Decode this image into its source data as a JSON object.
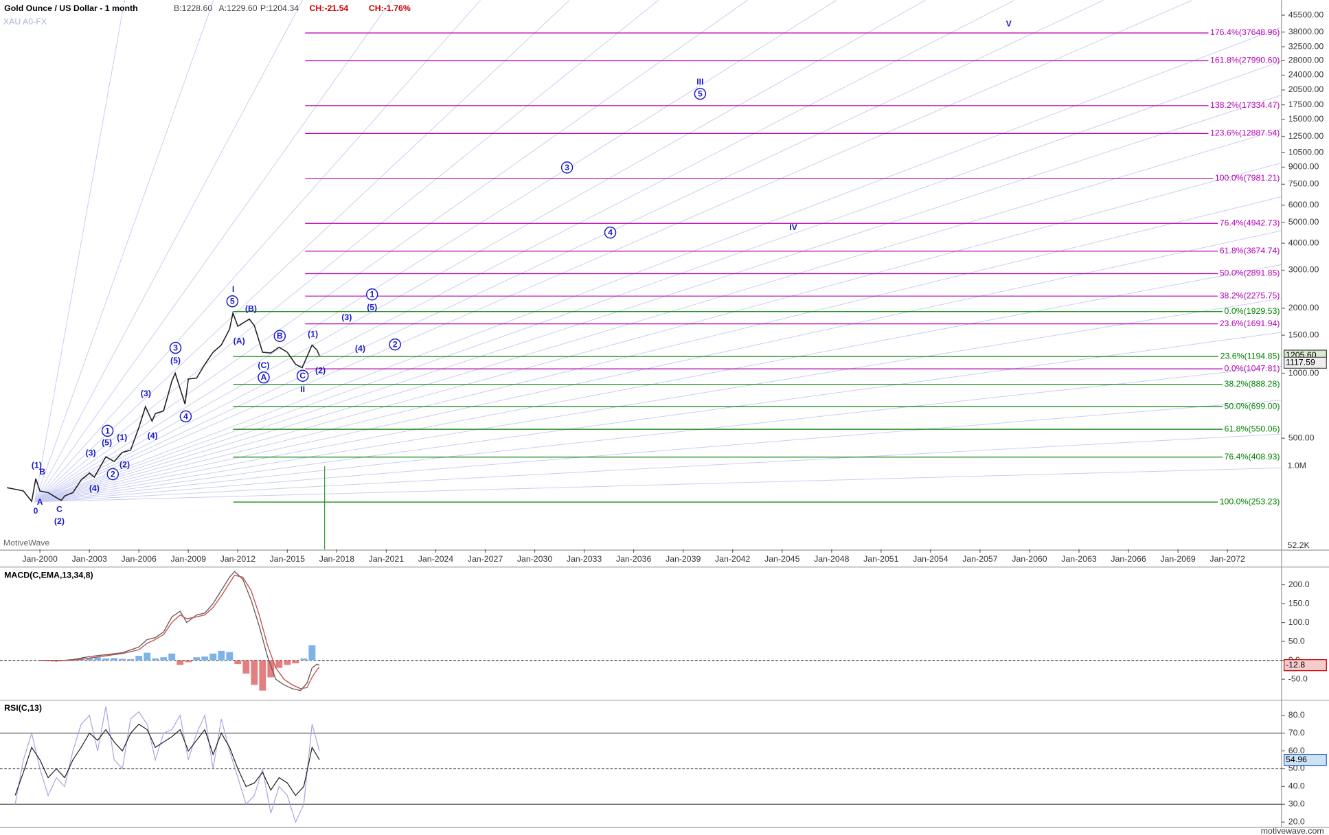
{
  "header": {
    "title": "Gold Ounce / US Dollar - 1 month",
    "bid": "B:1228.60",
    "ask": "A:1229.60",
    "price": "P:1204.34",
    "change": "CH:-21.54",
    "change_pct": "CH:-1.76%",
    "symbol": "XAU A0-FX",
    "watermark": "MotiveWave",
    "footer": "motivewave.com"
  },
  "chart_data": [
    {
      "type": "line",
      "log_scale": true,
      "color": "#222222",
      "x": [
        1998,
        1998.5,
        1999,
        1999.5,
        1999.75,
        2000,
        2000.5,
        2001,
        2001.3,
        2001.5,
        2002,
        2002.5,
        2003,
        2003.3,
        2004,
        2004.5,
        2005,
        2005.5,
        2006,
        2006.4,
        2006.8,
        2007,
        2007.5,
        2008,
        2008.2,
        2008.8,
        2009,
        2009.5,
        2010,
        2010.5,
        2011,
        2011.5,
        2011.7,
        2012,
        2012.7,
        2013,
        2013.5,
        2014,
        2014.5,
        2015,
        2015.5,
        2015.9,
        2016.5,
        2016.8,
        2016.95
      ],
      "values": [
        295,
        290,
        285,
        255,
        325,
        285,
        280,
        265,
        258,
        270,
        280,
        320,
        345,
        330,
        410,
        390,
        430,
        440,
        560,
        700,
        600,
        650,
        670,
        920,
        1000,
        720,
        940,
        950,
        1100,
        1250,
        1350,
        1600,
        1900,
        1650,
        1780,
        1660,
        1250,
        1240,
        1320,
        1250,
        1100,
        1060,
        1350,
        1280,
        1205
      ],
      "xlim": [
        1997.58,
        2075.28
      ],
      "xticks": [
        {
          "value": 2000,
          "label": "Jan-2000"
        },
        {
          "value": 2003,
          "label": "Jan-2003"
        },
        {
          "value": 2006,
          "label": "Jan-2006"
        },
        {
          "value": 2009,
          "label": "Jan-2009"
        },
        {
          "value": 2012,
          "label": "Jan-2012"
        },
        {
          "value": 2015,
          "label": "Jan-2015"
        },
        {
          "value": 2018,
          "label": "Jan-2018"
        },
        {
          "value": 2021,
          "label": "Jan-2021"
        },
        {
          "value": 2024,
          "label": "Jan-2024"
        },
        {
          "value": 2027,
          "label": "Jan-2027"
        },
        {
          "value": 2030,
          "label": "Jan-2030"
        },
        {
          "value": 2033,
          "label": "Jan-2033"
        },
        {
          "value": 2036,
          "label": "Jan-2036"
        },
        {
          "value": 2039,
          "label": "Jan-2039"
        },
        {
          "value": 2042,
          "label": "Jan-2042"
        },
        {
          "value": 2045,
          "label": "Jan-2045"
        },
        {
          "value": 2048,
          "label": "Jan-2048"
        },
        {
          "value": 2051,
          "label": "Jan-2051"
        },
        {
          "value": 2054,
          "label": "Jan-2054"
        },
        {
          "value": 2057,
          "label": "Jan-2057"
        },
        {
          "value": 2060,
          "label": "Jan-2060"
        },
        {
          "value": 2063,
          "label": "Jan-2063"
        },
        {
          "value": 2066,
          "label": "Jan-2066"
        },
        {
          "value": 2069,
          "label": "Jan-2069"
        },
        {
          "value": 2072,
          "label": "Jan-2072"
        }
      ],
      "ylim": [
        153,
        53400
      ],
      "yticks": [
        {
          "value": 45500,
          "label": "45500.00"
        },
        {
          "value": 38000,
          "label": "38000.00"
        },
        {
          "value": 32500,
          "label": "32500.00"
        },
        {
          "value": 28000,
          "label": "28000.00"
        },
        {
          "value": 24000,
          "label": "24000.00"
        },
        {
          "value": 20500,
          "label": "20500.00"
        },
        {
          "value": 17500,
          "label": "17500.00"
        },
        {
          "value": 15000,
          "label": "15000.00"
        },
        {
          "value": 12500,
          "label": "12500.00"
        },
        {
          "value": 10500,
          "label": "10500.00"
        },
        {
          "value": 9000,
          "label": "9000.00"
        },
        {
          "value": 7500,
          "label": "7500.00"
        },
        {
          "value": 6000,
          "label": "6000.00"
        },
        {
          "value": 5000,
          "label": "5000.00"
        },
        {
          "value": 4000,
          "label": "4000.00"
        },
        {
          "value": 3000,
          "label": "3000.00"
        },
        {
          "value": 2000,
          "label": "2000.00"
        },
        {
          "value": 1500,
          "label": "1500.00"
        },
        {
          "value": 1000,
          "label": "1000.00"
        },
        {
          "value": 500,
          "label": "500.00"
        }
      ],
      "fib_extension": {
        "color": "#b400b4",
        "levels": [
          {
            "value": 37648.96,
            "label": "176.4%(37648.96)"
          },
          {
            "value": 27990.6,
            "label": "161.8%(27990.60)"
          },
          {
            "value": 17334.47,
            "label": "138.2%(17334.47)"
          },
          {
            "value": 12887.54,
            "label": "123.6%(12887.54)"
          },
          {
            "value": 7981.21,
            "label": "100.0%(7981.21)"
          },
          {
            "value": 4942.73,
            "label": "76.4%(4942.73)"
          },
          {
            "value": 3674.74,
            "label": "61.8%(3674.74)"
          },
          {
            "value": 2891.85,
            "label": "50.0%(2891.85)"
          },
          {
            "value": 2275.75,
            "label": "38.2%(2275.75)"
          },
          {
            "value": 1691.94,
            "label": "23.6%(1691.94)"
          },
          {
            "value": 1047.81,
            "label": "0.0%(1047.81)"
          }
        ]
      },
      "fib_retracement": {
        "color": "#008000",
        "levels": [
          {
            "value": 1929.53,
            "label": "0.0%(1929.53)"
          },
          {
            "value": 1194.85,
            "label": "23.6%(1194.85)"
          },
          {
            "value": 888.28,
            "label": "38.2%(888.28)"
          },
          {
            "value": 699.0,
            "label": "50.0%(699.00)"
          },
          {
            "value": 550.06,
            "label": "61.8%(550.06)"
          },
          {
            "value": 408.93,
            "label": "76.4%(408.93)"
          },
          {
            "value": 253.23,
            "label": "100.0%(253.23)"
          }
        ]
      },
      "wave_color": "#1a1acc",
      "wave_labels": [
        {
          "text": "0",
          "x": 1999.74,
          "y": 230,
          "circled": false
        },
        {
          "text": "A",
          "x": 2000,
          "y": 253,
          "circled": false
        },
        {
          "text": "B",
          "x": 2000.15,
          "y": 350,
          "circled": false
        },
        {
          "text": "(1)",
          "x": 1999.8,
          "y": 374,
          "circled": false
        },
        {
          "text": "C",
          "x": 2001.18,
          "y": 234,
          "circled": false
        },
        {
          "text": "(2)",
          "x": 2001.18,
          "y": 206,
          "circled": false
        },
        {
          "text": "(3)",
          "x": 2003.08,
          "y": 428,
          "circled": false
        },
        {
          "text": "(4)",
          "x": 2003.3,
          "y": 293,
          "circled": false
        },
        {
          "text": "1",
          "x": 2004.1,
          "y": 541,
          "circled": true
        },
        {
          "text": "(5)",
          "x": 2004.06,
          "y": 477,
          "circled": false
        },
        {
          "text": "(1)",
          "x": 2004.98,
          "y": 504,
          "circled": false
        },
        {
          "text": "(2)",
          "x": 2005.14,
          "y": 377,
          "circled": false
        },
        {
          "text": "2",
          "x": 2004.42,
          "y": 341,
          "circled": true
        },
        {
          "text": "(3)",
          "x": 2006.42,
          "y": 805,
          "circled": false
        },
        {
          "text": "(4)",
          "x": 2006.83,
          "y": 513,
          "circled": false
        },
        {
          "text": "3",
          "x": 2008.22,
          "y": 1311,
          "circled": true
        },
        {
          "text": "(5)",
          "x": 2008.22,
          "y": 1145,
          "circled": false
        },
        {
          "text": "4",
          "x": 2008.84,
          "y": 631,
          "circled": true
        },
        {
          "text": "I",
          "x": 2011.72,
          "y": 2446,
          "circled": false
        },
        {
          "text": "5",
          "x": 2011.67,
          "y": 2153,
          "circled": true
        },
        {
          "text": "(B)",
          "x": 2012.8,
          "y": 1987,
          "circled": false
        },
        {
          "text": "(A)",
          "x": 2012.08,
          "y": 1409,
          "circled": false
        },
        {
          "text": "B",
          "x": 2014.54,
          "y": 1487,
          "circled": true
        },
        {
          "text": "(C)",
          "x": 2013.57,
          "y": 1085,
          "circled": false
        },
        {
          "text": "A",
          "x": 2013.57,
          "y": 956,
          "circled": true
        },
        {
          "text": "(1)",
          "x": 2016.55,
          "y": 1515,
          "circled": false
        },
        {
          "text": "C",
          "x": 2015.93,
          "y": 973,
          "circled": true
        },
        {
          "text": "(2)",
          "x": 2017.01,
          "y": 1027,
          "circled": false
        },
        {
          "text": "II",
          "x": 2015.93,
          "y": 842,
          "circled": false
        },
        {
          "text": "(3)",
          "x": 2018.6,
          "y": 1815,
          "circled": false
        },
        {
          "text": "(4)",
          "x": 2019.42,
          "y": 1299,
          "circled": false
        },
        {
          "text": "1",
          "x": 2020.14,
          "y": 2316,
          "circled": true
        },
        {
          "text": "(5)",
          "x": 2020.14,
          "y": 2021,
          "circled": false
        },
        {
          "text": "2",
          "x": 2021.53,
          "y": 1359,
          "circled": true
        },
        {
          "text": "3",
          "x": 2031.96,
          "y": 8966,
          "circled": true
        },
        {
          "text": "4",
          "x": 2034.58,
          "y": 4479,
          "circled": true
        },
        {
          "text": "III",
          "x": 2040.03,
          "y": 22336,
          "circled": false
        },
        {
          "text": "5",
          "x": 2040.03,
          "y": 19675,
          "circled": true
        },
        {
          "text": "IV",
          "x": 2045.68,
          "y": 4730,
          "circled": false
        },
        {
          "text": "V",
          "x": 2058.74,
          "y": 41530,
          "circled": false
        }
      ],
      "last_price": {
        "value": 1205.6,
        "label": "1205.60"
      },
      "low_marker": {
        "value": 1117.59,
        "label": "1117.59"
      },
      "volume_labels": [
        "1.0M",
        "52.2K"
      ]
    },
    {
      "type": "macd",
      "title": "MACD(C,EMA,13,34,8)",
      "xlim": [
        1997.58,
        2075.28
      ],
      "x": [
        2000,
        2001,
        2002,
        2003,
        2004,
        2005,
        2006,
        2006.5,
        2007,
        2007.5,
        2008,
        2008.5,
        2008.9,
        2009.5,
        2010,
        2010.5,
        2011,
        2011.5,
        2011.8,
        2012.3,
        2012.8,
        2013.3,
        2013.8,
        2014.3,
        2014.8,
        2015.3,
        2015.8,
        2016.2,
        2016.5,
        2016.8,
        2016.95
      ],
      "series": [
        {
          "color": "#6b5a5a",
          "values": [
            0,
            -2,
            2,
            10,
            15,
            20,
            35,
            55,
            60,
            75,
            115,
            130,
            100,
            120,
            125,
            150,
            185,
            220,
            235,
            215,
            160,
            90,
            10,
            -50,
            -65,
            -75,
            -80,
            -60,
            -20,
            -10,
            -13
          ]
        },
        {
          "color": "#c0504d",
          "values": [
            0,
            -1,
            0,
            6,
            12,
            18,
            28,
            45,
            55,
            68,
            100,
            120,
            110,
            115,
            120,
            140,
            170,
            205,
            225,
            220,
            185,
            120,
            40,
            -20,
            -50,
            -65,
            -75,
            -72,
            -45,
            -25,
            -18
          ]
        }
      ],
      "histogram": {
        "positive_color": "#7fb2e5",
        "negative_color": "#e57f7f",
        "x": [
          2002,
          2002.5,
          2003,
          2003.5,
          2004,
          2004.5,
          2005,
          2005.5,
          2006,
          2006.5,
          2007,
          2007.5,
          2008,
          2008.5,
          2009,
          2009.5,
          2010,
          2010.5,
          2011,
          2011.5,
          2012,
          2012.5,
          2013,
          2013.5,
          2014,
          2014.5,
          2015,
          2015.5,
          2016,
          2016.5
        ],
        "values": [
          3,
          5,
          6,
          8,
          5,
          6,
          4,
          3,
          12,
          20,
          5,
          8,
          18,
          -12,
          -5,
          8,
          10,
          18,
          25,
          22,
          -10,
          -35,
          -65,
          -80,
          -45,
          -20,
          -12,
          -8,
          5,
          40
        ]
      },
      "ylim": [
        -103,
        240
      ],
      "yticks": [
        {
          "value": 200,
          "label": "200.0"
        },
        {
          "value": 150,
          "label": "150.0"
        },
        {
          "value": 100,
          "label": "100.0"
        },
        {
          "value": 50,
          "label": "50.0"
        },
        {
          "value": 0,
          "label": "0.0"
        },
        {
          "value": -50,
          "label": "-50.0"
        }
      ],
      "last_value": {
        "value": -12.8,
        "label": "-12.8"
      }
    },
    {
      "type": "rsi",
      "title": "RSI(C,13)",
      "xlim": [
        1997.58,
        2075.28
      ],
      "x": [
        1998.5,
        1999,
        1999.5,
        2000,
        2000.5,
        2001,
        2001.5,
        2002,
        2002.5,
        2003,
        2003.5,
        2004,
        2004.5,
        2005,
        2005.5,
        2006,
        2006.5,
        2007,
        2007.5,
        2008,
        2008.5,
        2009,
        2009.5,
        2010,
        2010.5,
        2011,
        2011.5,
        2012,
        2012.5,
        2013,
        2013.5,
        2014,
        2014.5,
        2015,
        2015.5,
        2016,
        2016.5,
        2016.95
      ],
      "series": [
        {
          "color": "#222222",
          "values": [
            35,
            48,
            62,
            55,
            45,
            50,
            45,
            55,
            62,
            70,
            66,
            72,
            65,
            60,
            70,
            75,
            72,
            62,
            65,
            68,
            72,
            60,
            66,
            72,
            58,
            70,
            62,
            50,
            40,
            42,
            48,
            38,
            45,
            42,
            35,
            40,
            62,
            55
          ]
        },
        {
          "color": "#a8a8e0",
          "values": [
            30,
            55,
            70,
            50,
            35,
            45,
            40,
            60,
            75,
            80,
            60,
            85,
            55,
            50,
            78,
            82,
            75,
            55,
            70,
            72,
            80,
            55,
            70,
            80,
            50,
            78,
            60,
            45,
            30,
            35,
            50,
            25,
            40,
            35,
            20,
            30,
            75,
            60
          ]
        }
      ],
      "ylim": [
        17.6,
        87.6
      ],
      "yticks": [
        {
          "value": 80,
          "label": "80.0"
        },
        {
          "value": 70,
          "label": "70.0"
        },
        {
          "value": 60,
          "label": "60.0"
        },
        {
          "value": 50,
          "label": "50.0"
        },
        {
          "value": 40,
          "label": "40.0"
        },
        {
          "value": 30,
          "label": "30.0"
        },
        {
          "value": 20,
          "label": "20.0"
        }
      ],
      "reference_lines": [
        {
          "value": 70,
          "dashed": false
        },
        {
          "value": 50,
          "dashed": true
        },
        {
          "value": 30,
          "dashed": false
        }
      ],
      "last_value": 54.96
    }
  ]
}
